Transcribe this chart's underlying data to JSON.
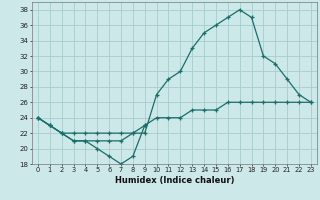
{
  "xlabel": "Humidex (Indice chaleur)",
  "bg_color": "#cce8e8",
  "grid_color": "#a8cccc",
  "line_color": "#1a6e6a",
  "x_full": [
    0,
    1,
    2,
    3,
    4,
    5,
    6,
    7,
    8,
    9,
    10,
    11,
    12,
    13,
    14,
    15,
    16,
    17,
    18,
    19,
    20,
    21,
    22,
    23
  ],
  "line_arc": [
    24,
    23,
    22,
    22,
    22,
    22,
    22,
    22,
    22,
    22,
    27,
    29,
    30,
    33,
    35,
    36,
    37,
    38,
    37,
    32,
    31,
    29,
    27,
    26
  ],
  "line_dip": [
    24,
    23,
    22,
    21,
    21,
    20,
    19,
    18,
    19,
    23,
    null,
    null,
    null,
    null,
    null,
    null,
    null,
    null,
    null,
    null,
    null,
    null,
    null,
    null
  ],
  "line_flat": [
    24,
    23,
    22,
    21,
    21,
    21,
    21,
    21,
    22,
    23,
    24,
    24,
    24,
    25,
    25,
    25,
    26,
    26,
    26,
    26,
    26,
    26,
    26,
    26
  ],
  "ylim": [
    18,
    39
  ],
  "xlim": [
    0,
    23
  ],
  "yticks": [
    18,
    20,
    22,
    24,
    26,
    28,
    30,
    32,
    34,
    36,
    38
  ],
  "xticks": [
    0,
    1,
    2,
    3,
    4,
    5,
    6,
    7,
    8,
    9,
    10,
    11,
    12,
    13,
    14,
    15,
    16,
    17,
    18,
    19,
    20,
    21,
    22,
    23
  ]
}
